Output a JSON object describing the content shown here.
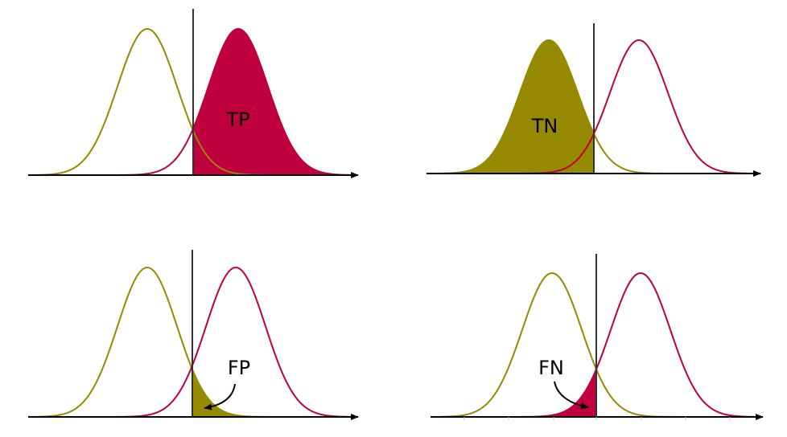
{
  "colors": {
    "negative_curve": "#968a00",
    "positive_curve": "#c0003e",
    "axis": "#000000",
    "threshold": "#333333"
  },
  "panels": [
    {
      "id": "tp",
      "label": "TP",
      "shaded_curve": "positive",
      "shaded_side": "right"
    },
    {
      "id": "tn",
      "label": "TN",
      "shaded_curve": "negative",
      "shaded_side": "left"
    },
    {
      "id": "fp",
      "label": "FP",
      "shaded_curve": "negative",
      "shaded_side": "right",
      "has_arrow": true
    },
    {
      "id": "fn",
      "label": "FN",
      "shaded_curve": "positive",
      "shaded_side": "left",
      "has_arrow": true
    }
  ]
}
